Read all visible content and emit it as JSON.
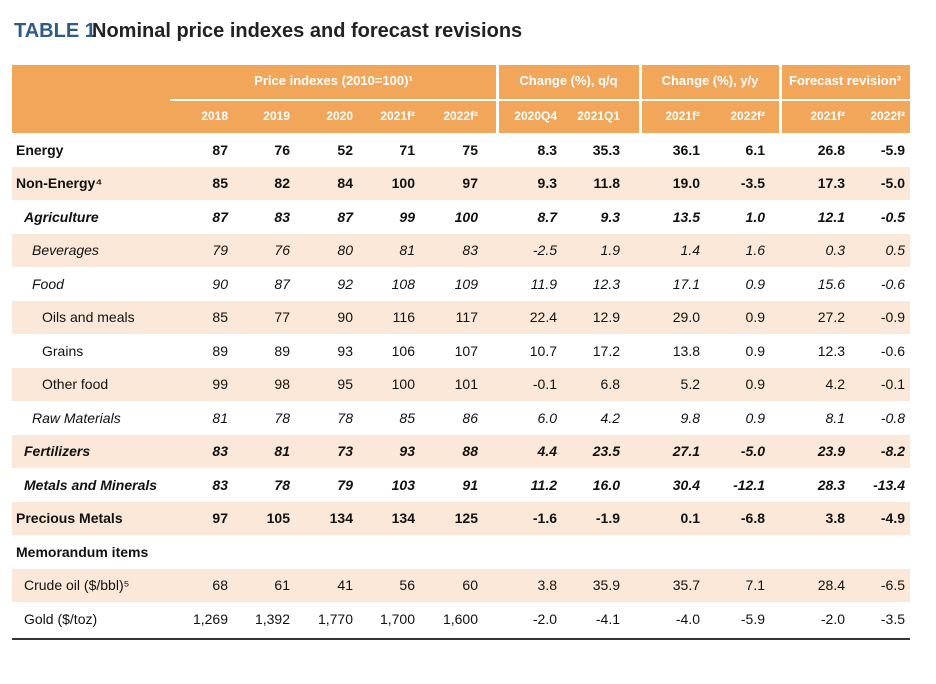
{
  "header": {
    "label": "TABLE 1",
    "title": "Nominal price indexes and forecast revisions"
  },
  "table": {
    "group_headers": [
      "Price indexes (2010=100)¹",
      "Change (%), q/q",
      "Change (%), y/y",
      "Forecast revision³"
    ],
    "columns": [
      "2018",
      "2019",
      "2020",
      "2021f²",
      "2022f²",
      "2020Q4",
      "2021Q1",
      "2021f²",
      "2022f²",
      "2021f²",
      "2022f²"
    ],
    "rows": [
      [
        "Energy",
        "87",
        "76",
        "52",
        "71",
        "75",
        "8.3",
        "35.3",
        "36.1",
        "6.1",
        "26.8",
        "-5.9"
      ],
      [
        "Non-Energy⁴",
        "85",
        "82",
        "84",
        "100",
        "97",
        "9.3",
        "11.8",
        "19.0",
        "-3.5",
        "17.3",
        "-5.0"
      ],
      [
        "Agriculture",
        "87",
        "83",
        "87",
        "99",
        "100",
        "8.7",
        "9.3",
        "13.5",
        "1.0",
        "12.1",
        "-0.5"
      ],
      [
        "Beverages",
        "79",
        "76",
        "80",
        "81",
        "83",
        "-2.5",
        "1.9",
        "1.4",
        "1.6",
        "0.3",
        "0.5"
      ],
      [
        "Food",
        "90",
        "87",
        "92",
        "108",
        "109",
        "11.9",
        "12.3",
        "17.1",
        "0.9",
        "15.6",
        "-0.6"
      ],
      [
        "Oils and meals",
        "85",
        "77",
        "90",
        "116",
        "117",
        "22.4",
        "12.9",
        "29.0",
        "0.9",
        "27.2",
        "-0.9"
      ],
      [
        "Grains",
        "89",
        "89",
        "93",
        "106",
        "107",
        "10.7",
        "17.2",
        "13.8",
        "0.9",
        "12.3",
        "-0.6"
      ],
      [
        "Other food",
        "99",
        "98",
        "95",
        "100",
        "101",
        "-0.1",
        "6.8",
        "5.2",
        "0.9",
        "4.2",
        "-0.1"
      ],
      [
        "Raw Materials",
        "81",
        "78",
        "78",
        "85",
        "86",
        "6.0",
        "4.2",
        "9.8",
        "0.9",
        "8.1",
        "-0.8"
      ],
      [
        "Fertilizers",
        "83",
        "81",
        "73",
        "93",
        "88",
        "4.4",
        "23.5",
        "27.1",
        "-5.0",
        "23.9",
        "-8.2"
      ],
      [
        "Metals and Minerals",
        "83",
        "78",
        "79",
        "103",
        "91",
        "11.2",
        "16.0",
        "30.4",
        "-12.1",
        "28.3",
        "-13.4"
      ],
      [
        "Precious Metals",
        "97",
        "105",
        "134",
        "134",
        "125",
        "-1.6",
        "-1.9",
        "0.1",
        "-6.8",
        "3.8",
        "-4.9"
      ],
      [
        "Memorandum items"
      ],
      [
        "Crude oil ($/bbl)⁵",
        "68",
        "61",
        "41",
        "56",
        "60",
        "3.8",
        "35.9",
        "35.7",
        "7.1",
        "28.4",
        "-6.5"
      ],
      [
        "Gold ($/toz)",
        "1,269",
        "1,392",
        "1,770",
        "1,700",
        "1,600",
        "-2.0",
        "-4.1",
        "-4.0",
        "-5.9",
        "-2.0",
        "-3.5"
      ]
    ]
  }
}
